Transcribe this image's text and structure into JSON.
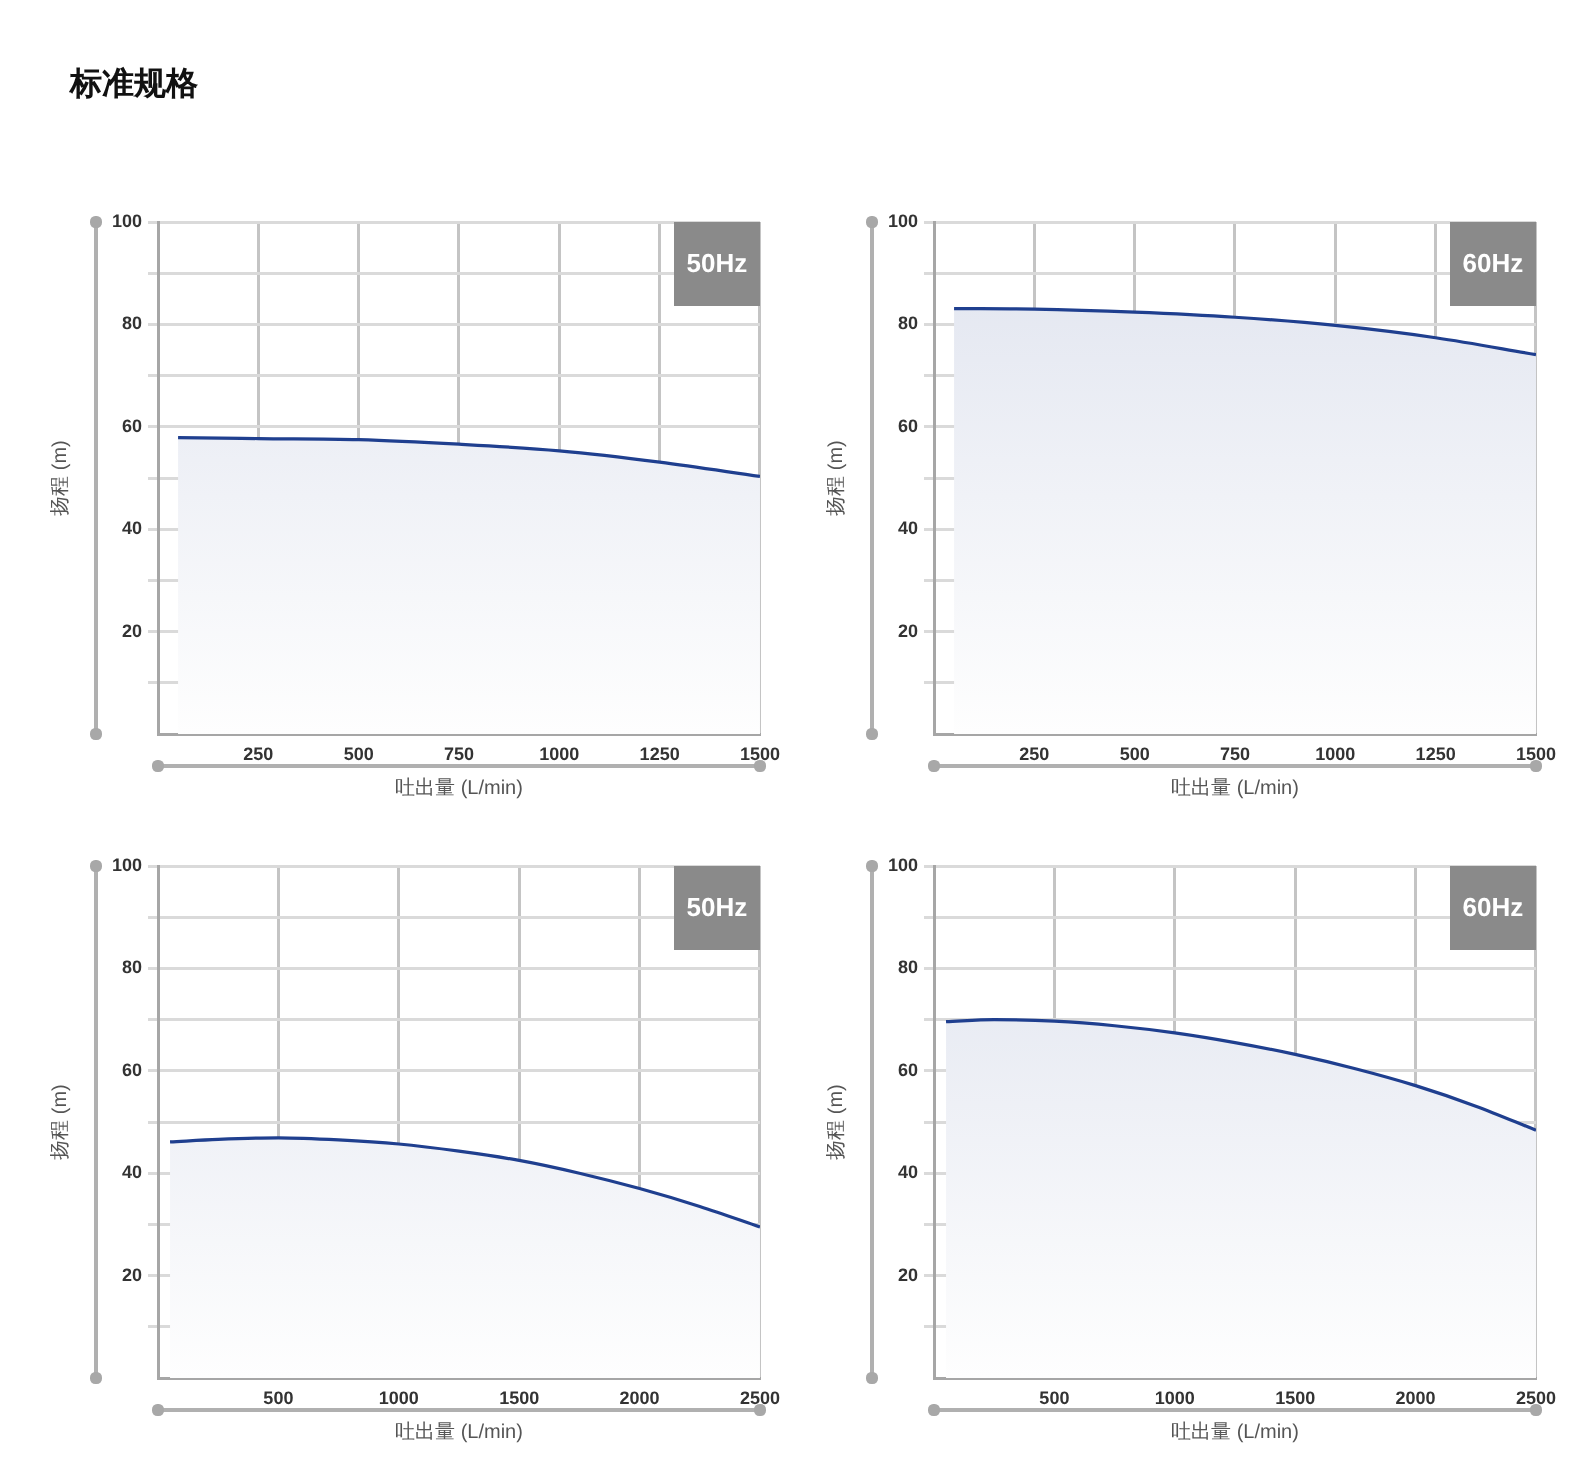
{
  "chart_data": [
    {
      "type": "area",
      "title": "标准规格",
      "xlabel": "吐出量 (L/min)",
      "ylabel": "扬程 (m)",
      "annotations": [
        "50Hz"
      ],
      "x": [
        50,
        250,
        500,
        750,
        1000,
        1250,
        1500
      ],
      "values": [
        57.9,
        57.7,
        57.5,
        56.6,
        55.3,
        53.1,
        50.3
      ],
      "color": "#1f3f8f",
      "xlim": [
        0,
        1500
      ],
      "xticks": [
        250,
        500,
        750,
        1000,
        1250,
        1500
      ],
      "ylim": [
        0,
        100
      ],
      "yticks": [
        {
          "value": 10,
          "label": null
        },
        20,
        {
          "value": 30,
          "label": null
        },
        40,
        {
          "value": 50,
          "label": null
        },
        60,
        {
          "value": 70,
          "label": null
        },
        80,
        {
          "value": 90,
          "label": null
        },
        100
      ],
      "grid": true
    },
    {
      "type": "area",
      "xlabel": "吐出量 (L/min)",
      "ylabel": "扬程 (m)",
      "annotations": [
        "60Hz"
      ],
      "x": [
        50,
        250,
        500,
        750,
        1000,
        1250,
        1500
      ],
      "values": [
        83.1,
        83.0,
        82.4,
        81.4,
        79.8,
        77.4,
        74.1
      ],
      "color": "#1f3f8f",
      "xlim": [
        0,
        1500
      ],
      "xticks": [
        250,
        500,
        750,
        1000,
        1250,
        1500
      ],
      "ylim": [
        0,
        100
      ],
      "yticks": [
        {
          "value": 10,
          "label": null
        },
        20,
        {
          "value": 30,
          "label": null
        },
        40,
        {
          "value": 50,
          "label": null
        },
        60,
        {
          "value": 70,
          "label": null
        },
        80,
        {
          "value": 90,
          "label": null
        },
        100
      ],
      "grid": true
    },
    {
      "type": "area",
      "xlabel": "吐出量 (L/min)",
      "ylabel": "扬程 (m)",
      "annotations": [
        "50Hz"
      ],
      "x": [
        50,
        250,
        500,
        750,
        1000,
        1250,
        1500,
        1750,
        2000,
        2250,
        2500
      ],
      "values": [
        46.1,
        46.6,
        46.9,
        46.5,
        45.7,
        44.3,
        42.5,
        40.0,
        37.0,
        33.5,
        29.5
      ],
      "color": "#1f3f8f",
      "xlim": [
        0,
        2500
      ],
      "xticks": [
        500,
        1000,
        1500,
        2000,
        2500
      ],
      "ylim": [
        0,
        100
      ],
      "yticks": [
        {
          "value": 10,
          "label": null
        },
        20,
        {
          "value": 30,
          "label": null
        },
        40,
        {
          "value": 50,
          "label": null
        },
        60,
        {
          "value": 70,
          "label": null
        },
        80,
        {
          "value": 90,
          "label": null
        },
        100
      ],
      "grid": true
    },
    {
      "type": "area",
      "xlabel": "吐出量 (L/min)",
      "ylabel": "扬程 (m)",
      "annotations": [
        "60Hz"
      ],
      "x": [
        50,
        250,
        500,
        750,
        1000,
        1250,
        1500,
        1750,
        2000,
        2250,
        2500
      ],
      "values": [
        69.6,
        70.0,
        69.7,
        68.8,
        67.4,
        65.5,
        63.2,
        60.4,
        57.1,
        53.1,
        48.4
      ],
      "color": "#1f3f8f",
      "xlim": [
        0,
        2500
      ],
      "xticks": [
        500,
        1000,
        1500,
        2000,
        2500
      ],
      "ylim": [
        0,
        100
      ],
      "yticks": [
        {
          "value": 10,
          "label": null
        },
        20,
        {
          "value": 30,
          "label": null
        },
        40,
        {
          "value": 50,
          "label": null
        },
        60,
        {
          "value": 70,
          "label": null
        },
        80,
        {
          "value": 90,
          "label": null
        },
        100
      ],
      "grid": true
    }
  ]
}
